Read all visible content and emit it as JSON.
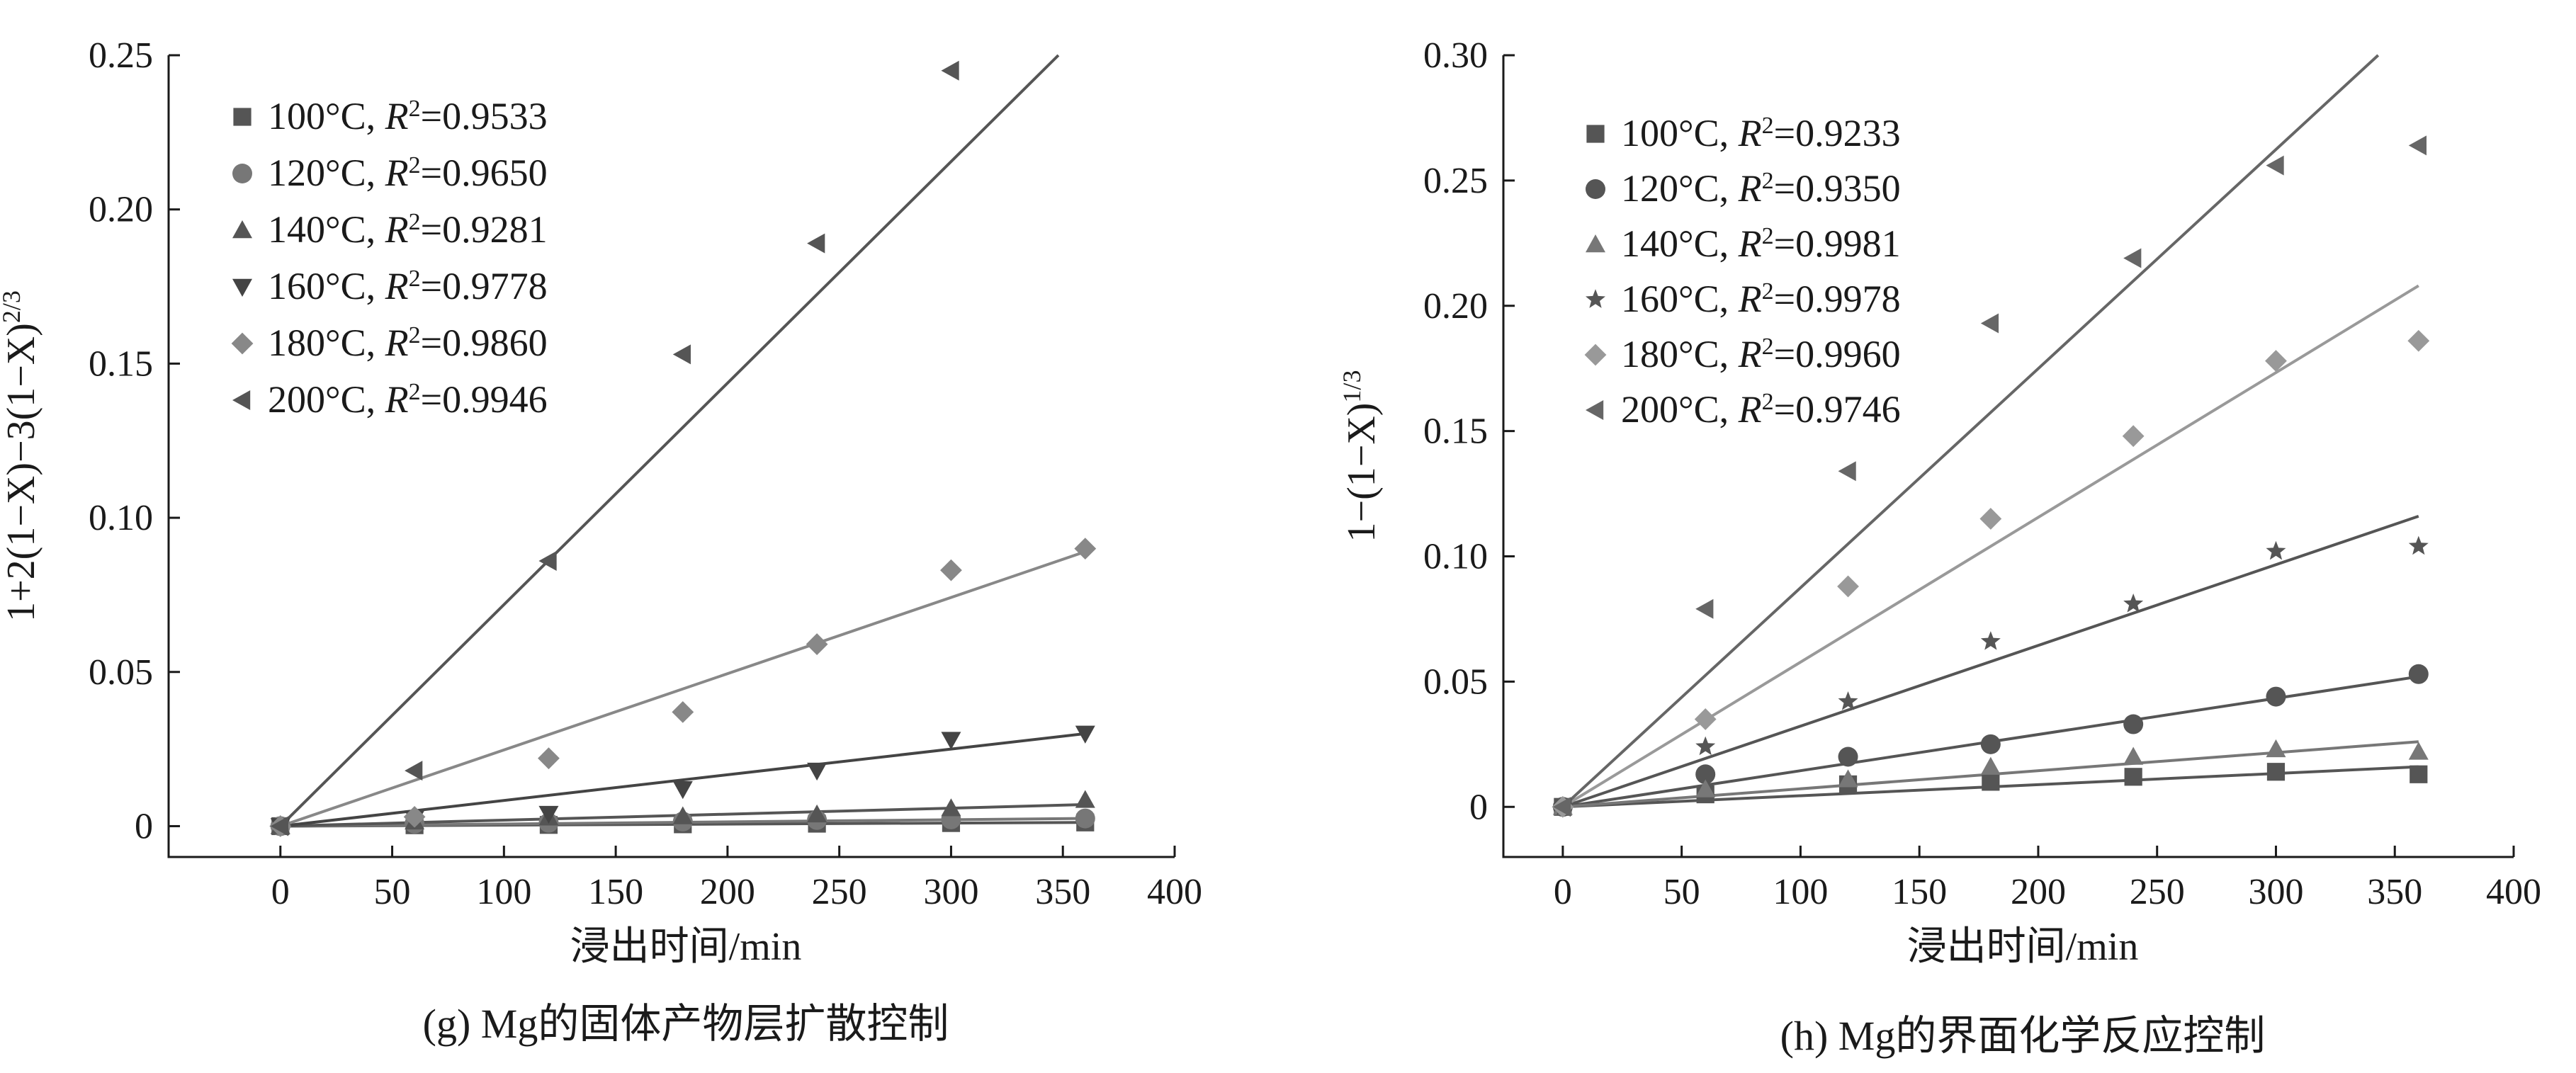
{
  "chart_data": [
    {
      "id": "g",
      "type": "scatter",
      "caption": "(g) Mg的固体产物层扩散控制",
      "xlabel": "浸出时间/min",
      "ylabel": "1+2(1−X)−3(1−X)",
      "ylabel_sup": "2/3",
      "xlim": [
        -50,
        400
      ],
      "ylim": [
        -0.01,
        0.25
      ],
      "xticks": [
        0,
        50,
        100,
        150,
        200,
        250,
        300,
        350,
        400
      ],
      "yticks": [
        0,
        0.05,
        0.1,
        0.15,
        0.2,
        0.25
      ],
      "ytick_labels": [
        "0",
        "0.05",
        "0.10",
        "0.15",
        "0.20",
        "0.25"
      ],
      "legend_position": "top-left",
      "series": [
        {
          "name": "100°C",
          "r2": "=0.9533",
          "marker": "square",
          "color": "#555555",
          "x": [
            0,
            60,
            120,
            180,
            240,
            300,
            360
          ],
          "y": [
            0,
            0.0003,
            0.0004,
            0.0006,
            0.0008,
            0.001,
            0.0012
          ],
          "fit": [
            [
              0,
              0
            ],
            [
              360,
              0.0012
            ]
          ]
        },
        {
          "name": "120°C",
          "r2": "=0.9650",
          "marker": "circle",
          "color": "#777777",
          "x": [
            0,
            60,
            120,
            180,
            240,
            300,
            360
          ],
          "y": [
            0,
            0.0008,
            0.0011,
            0.0015,
            0.002,
            0.0022,
            0.0025
          ],
          "fit": [
            [
              0,
              0
            ],
            [
              360,
              0.0025
            ]
          ]
        },
        {
          "name": "140°C",
          "r2": "=0.9281",
          "marker": "triangle-up",
          "color": "#555555",
          "x": [
            0,
            60,
            120,
            180,
            240,
            300,
            360
          ],
          "y": [
            0,
            0.0015,
            0.0028,
            0.0032,
            0.0038,
            0.0058,
            0.0085
          ],
          "fit": [
            [
              0,
              0
            ],
            [
              360,
              0.007
            ]
          ]
        },
        {
          "name": "160°C",
          "r2": "=0.9778",
          "marker": "triangle-down",
          "color": "#444444",
          "x": [
            0,
            60,
            120,
            180,
            240,
            300,
            360
          ],
          "y": [
            0,
            0.0025,
            0.004,
            0.012,
            0.018,
            0.028,
            0.03
          ],
          "fit": [
            [
              0,
              0
            ],
            [
              360,
              0.03
            ]
          ]
        },
        {
          "name": "180°C",
          "r2": "=0.9860",
          "marker": "diamond",
          "color": "#888888",
          "x": [
            0,
            60,
            120,
            180,
            240,
            300,
            360
          ],
          "y": [
            0,
            0.003,
            0.022,
            0.037,
            0.059,
            0.083,
            0.09
          ],
          "fit": [
            [
              0,
              0
            ],
            [
              360,
              0.089
            ]
          ]
        },
        {
          "name": "200°C",
          "r2": "=0.9946",
          "marker": "triangle-left",
          "color": "#555555",
          "x": [
            0,
            60,
            120,
            180,
            240,
            300
          ],
          "y": [
            0,
            0.018,
            0.086,
            0.153,
            0.189,
            0.245
          ],
          "fit": [
            [
              0,
              0
            ],
            [
              348,
              0.25
            ]
          ]
        }
      ]
    },
    {
      "id": "h",
      "type": "scatter",
      "caption": "(h) Mg的界面化学反应控制",
      "xlabel": "浸出时间/min",
      "ylabel": "1−(1−X)",
      "ylabel_sup": "1/3",
      "xlim": [
        -25,
        400
      ],
      "ylim": [
        -0.02,
        0.3
      ],
      "xticks": [
        0,
        50,
        100,
        150,
        200,
        250,
        300,
        350,
        400
      ],
      "yticks": [
        0,
        0.05,
        0.1,
        0.15,
        0.2,
        0.25,
        0.3
      ],
      "ytick_labels": [
        "0",
        "0.05",
        "0.10",
        "0.15",
        "0.20",
        "0.25",
        "0.30"
      ],
      "legend_position": "top-left",
      "series": [
        {
          "name": "100°C",
          "r2": "=0.9233",
          "marker": "square",
          "color": "#555555",
          "x": [
            0,
            60,
            120,
            180,
            240,
            300,
            360
          ],
          "y": [
            0,
            0.005,
            0.009,
            0.01,
            0.012,
            0.014,
            0.013
          ],
          "fit": [
            [
              0,
              0
            ],
            [
              360,
              0.016
            ]
          ]
        },
        {
          "name": "120°C",
          "r2": "=0.9350",
          "marker": "circle",
          "color": "#555555",
          "x": [
            0,
            60,
            120,
            180,
            240,
            300,
            360
          ],
          "y": [
            0,
            0.013,
            0.02,
            0.025,
            0.033,
            0.044,
            0.053
          ],
          "fit": [
            [
              0,
              0
            ],
            [
              360,
              0.052
            ]
          ]
        },
        {
          "name": "140°C",
          "r2": "=0.9981",
          "marker": "triangle-up",
          "color": "#777777",
          "x": [
            0,
            60,
            120,
            180,
            240,
            300,
            360
          ],
          "y": [
            0,
            0.007,
            0.011,
            0.016,
            0.02,
            0.023,
            0.022
          ],
          "fit": [
            [
              0,
              0
            ],
            [
              360,
              0.026
            ]
          ]
        },
        {
          "name": "160°C",
          "r2": "=0.9978",
          "marker": "star",
          "color": "#555555",
          "x": [
            0,
            60,
            120,
            180,
            240,
            300,
            360
          ],
          "y": [
            0,
            0.024,
            0.042,
            0.066,
            0.081,
            0.102,
            0.104
          ],
          "fit": [
            [
              0,
              0
            ],
            [
              360,
              0.116
            ]
          ]
        },
        {
          "name": "180°C",
          "r2": "=0.9960",
          "marker": "diamond",
          "color": "#999999",
          "x": [
            0,
            60,
            120,
            180,
            240,
            300,
            360
          ],
          "y": [
            0,
            0.035,
            0.088,
            0.115,
            0.148,
            0.178,
            0.186
          ],
          "fit": [
            [
              0,
              0
            ],
            [
              360,
              0.208
            ]
          ]
        },
        {
          "name": "200°C",
          "r2": "=0.9746",
          "marker": "triangle-left",
          "color": "#666666",
          "x": [
            0,
            60,
            120,
            180,
            240,
            300,
            360
          ],
          "y": [
            0,
            0.079,
            0.134,
            0.193,
            0.219,
            0.256,
            0.264
          ],
          "fit": [
            [
              0,
              0
            ],
            [
              343,
              0.3
            ]
          ]
        }
      ]
    }
  ]
}
